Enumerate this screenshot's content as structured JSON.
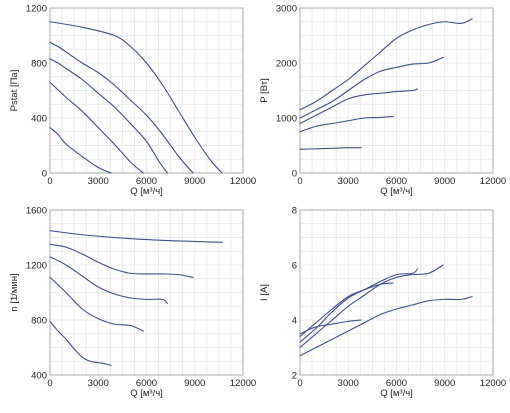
{
  "chart_data": [
    {
      "type": "line",
      "ylabel": "Pstat [Па]",
      "xlabel": "Q [м³/ч]",
      "xlim": [
        0,
        12000
      ],
      "ylim": [
        0,
        1200
      ],
      "xticks": [
        0,
        3000,
        6000,
        9000,
        12000
      ],
      "yticks": [
        0,
        400,
        800,
        1200
      ],
      "grid": true,
      "series": [
        {
          "x": [
            0,
            2000,
            4000,
            5000,
            6000,
            7000,
            8000,
            9000,
            10000,
            10700
          ],
          "y": [
            1100,
            1060,
            1000,
            920,
            800,
            640,
            450,
            260,
            90,
            0
          ]
        },
        {
          "x": [
            0,
            500,
            1000,
            2000,
            3000,
            4000,
            5000,
            6000,
            7000,
            8000,
            8900
          ],
          "y": [
            950,
            920,
            880,
            800,
            730,
            640,
            530,
            420,
            280,
            120,
            0
          ]
        },
        {
          "x": [
            0,
            500,
            1000,
            2000,
            3000,
            4000,
            5000,
            6000,
            6800,
            7300
          ],
          "y": [
            830,
            800,
            760,
            680,
            580,
            480,
            360,
            230,
            80,
            0
          ]
        },
        {
          "x": [
            0,
            1000,
            2000,
            3000,
            4000,
            5000,
            5800
          ],
          "y": [
            660,
            550,
            450,
            330,
            210,
            80,
            0
          ]
        },
        {
          "x": [
            0,
            500,
            1000,
            2000,
            3000,
            3800
          ],
          "y": [
            330,
            280,
            210,
            120,
            40,
            0
          ]
        }
      ]
    },
    {
      "type": "line",
      "ylabel": "P [Вт]",
      "xlabel": "Q [м³/ч]",
      "xlim": [
        0,
        12000
      ],
      "ylim": [
        0,
        3000
      ],
      "xticks": [
        0,
        3000,
        6000,
        9000,
        12000
      ],
      "yticks": [
        0,
        1000,
        2000,
        3000
      ],
      "grid": true,
      "series": [
        {
          "x": [
            0,
            1000,
            2000,
            3000,
            4000,
            5000,
            6000,
            7000,
            8000,
            9000,
            10000,
            10700
          ],
          "y": [
            1150,
            1300,
            1500,
            1700,
            1950,
            2200,
            2450,
            2600,
            2700,
            2750,
            2720,
            2800
          ]
        },
        {
          "x": [
            0,
            1000,
            2000,
            3000,
            4000,
            5000,
            6000,
            7000,
            8000,
            8900
          ],
          "y": [
            1000,
            1150,
            1300,
            1500,
            1700,
            1850,
            1920,
            1980,
            2000,
            2100
          ]
        },
        {
          "x": [
            0,
            1000,
            2000,
            3000,
            4000,
            5000,
            6000,
            7000,
            7300
          ],
          "y": [
            900,
            1050,
            1200,
            1350,
            1420,
            1450,
            1480,
            1500,
            1530
          ]
        },
        {
          "x": [
            0,
            1000,
            2000,
            3000,
            4000,
            5000,
            5800
          ],
          "y": [
            750,
            850,
            900,
            950,
            1000,
            1010,
            1030
          ]
        },
        {
          "x": [
            0,
            1000,
            2000,
            3000,
            3800
          ],
          "y": [
            430,
            440,
            450,
            460,
            460
          ]
        }
      ]
    },
    {
      "type": "line",
      "ylabel": "n [1/мин]",
      "xlabel": "Q [м³/ч]",
      "xlim": [
        0,
        12000
      ],
      "ylim": [
        400,
        1600
      ],
      "xticks": [
        0,
        3000,
        6000,
        9000,
        12000
      ],
      "yticks": [
        400,
        800,
        1200,
        1600
      ],
      "grid": true,
      "series": [
        {
          "x": [
            0,
            2000,
            4000,
            6000,
            8000,
            10700
          ],
          "y": [
            1450,
            1420,
            1400,
            1385,
            1375,
            1365
          ]
        },
        {
          "x": [
            0,
            1000,
            2000,
            3000,
            4000,
            5000,
            6000,
            7000,
            8000,
            8900
          ],
          "y": [
            1350,
            1330,
            1280,
            1220,
            1170,
            1140,
            1135,
            1135,
            1130,
            1110
          ]
        },
        {
          "x": [
            0,
            1000,
            2000,
            3000,
            4000,
            5000,
            6000,
            7000,
            7300
          ],
          "y": [
            1260,
            1200,
            1120,
            1040,
            990,
            960,
            950,
            950,
            920
          ]
        },
        {
          "x": [
            0,
            1000,
            2000,
            3000,
            4000,
            5000,
            5800
          ],
          "y": [
            1110,
            1000,
            880,
            810,
            770,
            760,
            720
          ]
        },
        {
          "x": [
            0,
            500,
            1000,
            1500,
            2000,
            2500,
            3000,
            3500,
            3800
          ],
          "y": [
            790,
            720,
            660,
            590,
            530,
            500,
            490,
            480,
            470
          ]
        }
      ]
    },
    {
      "type": "line",
      "ylabel": "I [A]",
      "xlabel": "Q [м³/ч]",
      "xlim": [
        0,
        12000
      ],
      "ylim": [
        2,
        8
      ],
      "xticks": [
        0,
        3000,
        6000,
        9000,
        12000
      ],
      "yticks": [
        2,
        4,
        6,
        8
      ],
      "grid": true,
      "series": [
        {
          "x": [
            0,
            1000,
            2000,
            3000,
            4000,
            5000,
            6000,
            7000,
            8000,
            9000,
            10000,
            10700
          ],
          "y": [
            2.7,
            3.0,
            3.3,
            3.6,
            3.9,
            4.2,
            4.4,
            4.55,
            4.7,
            4.75,
            4.75,
            4.85
          ]
        },
        {
          "x": [
            0,
            1000,
            2000,
            3000,
            4000,
            5000,
            6000,
            7000,
            8000,
            8900
          ],
          "y": [
            3.0,
            3.5,
            4.0,
            4.5,
            4.9,
            5.3,
            5.55,
            5.65,
            5.7,
            6.0
          ]
        },
        {
          "x": [
            0,
            1000,
            2000,
            3000,
            4000,
            5000,
            6000,
            7000,
            7300
          ],
          "y": [
            3.2,
            3.7,
            4.3,
            4.8,
            5.1,
            5.4,
            5.65,
            5.7,
            5.85
          ]
        },
        {
          "x": [
            0,
            1000,
            2000,
            3000,
            4000,
            5000,
            5800
          ],
          "y": [
            3.4,
            3.9,
            4.4,
            4.85,
            5.1,
            5.3,
            5.35
          ]
        },
        {
          "x": [
            0,
            1000,
            2000,
            3000,
            3800
          ],
          "y": [
            3.5,
            3.75,
            3.85,
            3.95,
            4.0
          ]
        }
      ]
    }
  ]
}
